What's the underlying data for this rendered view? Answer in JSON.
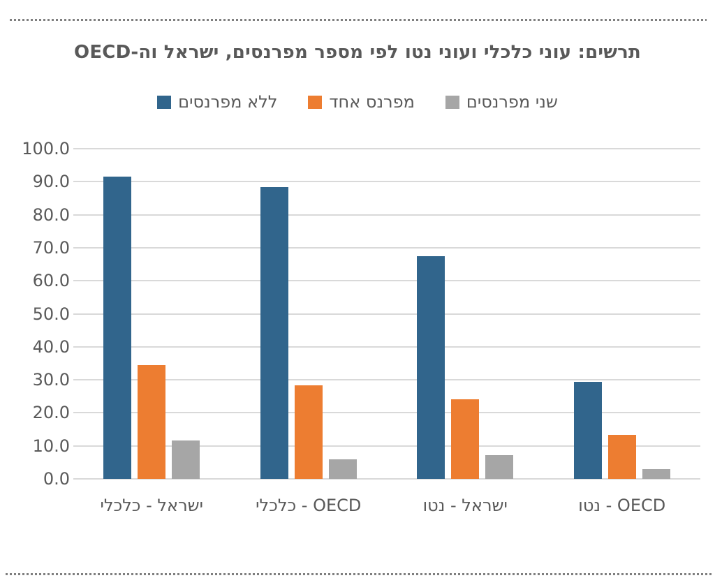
{
  "title": "תרשים: עוני כלכלי ועוני נטו לפי מספר מפרנסים, ישראל וה-OECD",
  "legend": [
    {
      "label": "ללא מפרנסים",
      "color": "#31658C"
    },
    {
      "label": "מפרנס אחד",
      "color": "#ED7D31"
    },
    {
      "label": "שני מפרנסים",
      "color": "#A6A6A6"
    }
  ],
  "colors": {
    "text": "#595959",
    "gridline": "#D9D9D9",
    "axis_line": "#D9D9D9",
    "dotted_rule": "#7F7F7F",
    "background": "#FFFFFF"
  },
  "chart_data": {
    "type": "bar",
    "title": "תרשים: עוני כלכלי ועוני נטו לפי מספר מפרנסים, ישראל וה-OECD",
    "categories": [
      "ישראל - כלכלי",
      "OECD - כלכלי",
      "ישראל - נטו",
      "OECD - נטו"
    ],
    "series": [
      {
        "name": "ללא מפרנסים",
        "color": "#31658C",
        "values": [
          91.5,
          88.4,
          67.4,
          29.3
        ]
      },
      {
        "name": "מפרנס אחד",
        "color": "#ED7D31",
        "values": [
          34.4,
          28.4,
          24.0,
          13.4
        ]
      },
      {
        "name": "שני מפרנסים",
        "color": "#A6A6A6",
        "values": [
          11.6,
          6.0,
          7.2,
          2.9
        ]
      }
    ],
    "xlabel": "",
    "ylabel": "",
    "ylim": [
      0,
      100
    ],
    "ytick_step": 10,
    "ytick_labels": [
      "0.0",
      "10.0",
      "20.0",
      "30.0",
      "40.0",
      "50.0",
      "60.0",
      "70.0",
      "80.0",
      "90.0",
      "100.0"
    ],
    "grid": true,
    "legend_position": "top",
    "direction": "rtl"
  }
}
